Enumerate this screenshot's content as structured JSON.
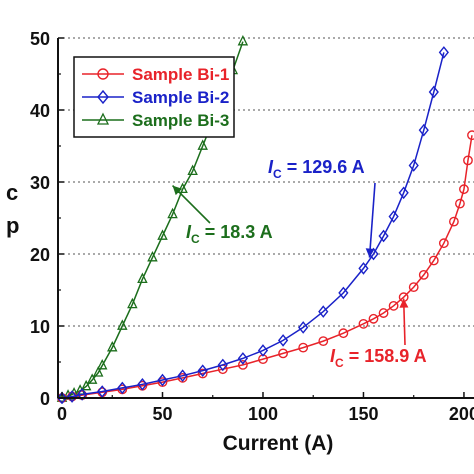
{
  "chart_data": {
    "type": "scatter",
    "xlabel": "Current (A)",
    "ylabel": "",
    "xlim": [
      -2,
      205
    ],
    "ylim": [
      0,
      50
    ],
    "x_ticks": [
      0,
      50,
      100,
      150,
      200
    ],
    "x_tick_labels": [
      "0",
      "50",
      "100",
      "150",
      "200"
    ],
    "y_ticks": [
      0,
      10,
      20,
      30,
      40,
      50
    ],
    "y_tick_labels": [
      "0",
      "10",
      "20",
      "30",
      "40",
      "50"
    ],
    "y_axis_partial_label": [
      "c",
      "p"
    ],
    "grid": "horizontal dotted",
    "legend_position": "top-left",
    "series": [
      {
        "name": "Sample Bi-1",
        "color": "#e8232a",
        "marker": "circle",
        "x": [
          0,
          5,
          10,
          20,
          30,
          40,
          50,
          60,
          70,
          80,
          90,
          100,
          110,
          120,
          130,
          140,
          150,
          155,
          160,
          165,
          170,
          175,
          180,
          185,
          190,
          195,
          198,
          200,
          202,
          204
        ],
        "y": [
          0,
          0.2,
          0.4,
          0.8,
          1.2,
          1.7,
          2.2,
          2.8,
          3.4,
          4.0,
          4.6,
          5.4,
          6.2,
          7.0,
          7.9,
          9.0,
          10.3,
          11.0,
          11.8,
          12.8,
          14.0,
          15.4,
          17.1,
          19.1,
          21.5,
          24.5,
          27,
          29,
          33,
          36.5
        ]
      },
      {
        "name": "Sample Bi-2",
        "color": "#1a22c8",
        "marker": "diamond",
        "x": [
          0,
          5,
          10,
          20,
          30,
          40,
          50,
          60,
          70,
          80,
          90,
          100,
          110,
          120,
          130,
          140,
          150,
          155,
          160,
          165,
          170,
          175,
          180,
          185,
          190
        ],
        "y": [
          0,
          0.2,
          0.5,
          0.9,
          1.4,
          1.9,
          2.5,
          3.1,
          3.8,
          4.6,
          5.5,
          6.6,
          8.0,
          9.8,
          12.0,
          14.6,
          18.0,
          20.0,
          22.5,
          25.2,
          28.5,
          32.3,
          37.2,
          42.5,
          48
        ]
      },
      {
        "name": "Sample Bi-3",
        "color": "#1c6e1c",
        "marker": "triangle",
        "x": [
          0,
          3,
          6,
          9,
          12,
          15,
          18,
          20,
          25,
          30,
          35,
          40,
          45,
          50,
          55,
          60,
          65,
          70,
          75,
          80,
          85,
          90
        ],
        "y": [
          0,
          0.3,
          0.6,
          1.0,
          1.6,
          2.5,
          3.5,
          4.5,
          7.0,
          10.0,
          13.0,
          16.5,
          19.5,
          22.5,
          25.5,
          29.0,
          31.5,
          35.0,
          38.5,
          42.0,
          45.5,
          49.5
        ]
      }
    ],
    "annotations": [
      {
        "prefix": "I",
        "subscript": "C",
        "text": " = 129.6 A",
        "color": "#1a22c8",
        "points_to": [
          153,
          19.5
        ]
      },
      {
        "prefix": "I",
        "subscript": "C",
        "text": " = 18.3 A",
        "color": "#1c6e1c",
        "points_to": [
          55,
          29.5
        ]
      },
      {
        "prefix": "I",
        "subscript": "C",
        "text": " = 158.9 A",
        "color": "#e8232a",
        "points_to": [
          170,
          13.8
        ]
      }
    ]
  }
}
